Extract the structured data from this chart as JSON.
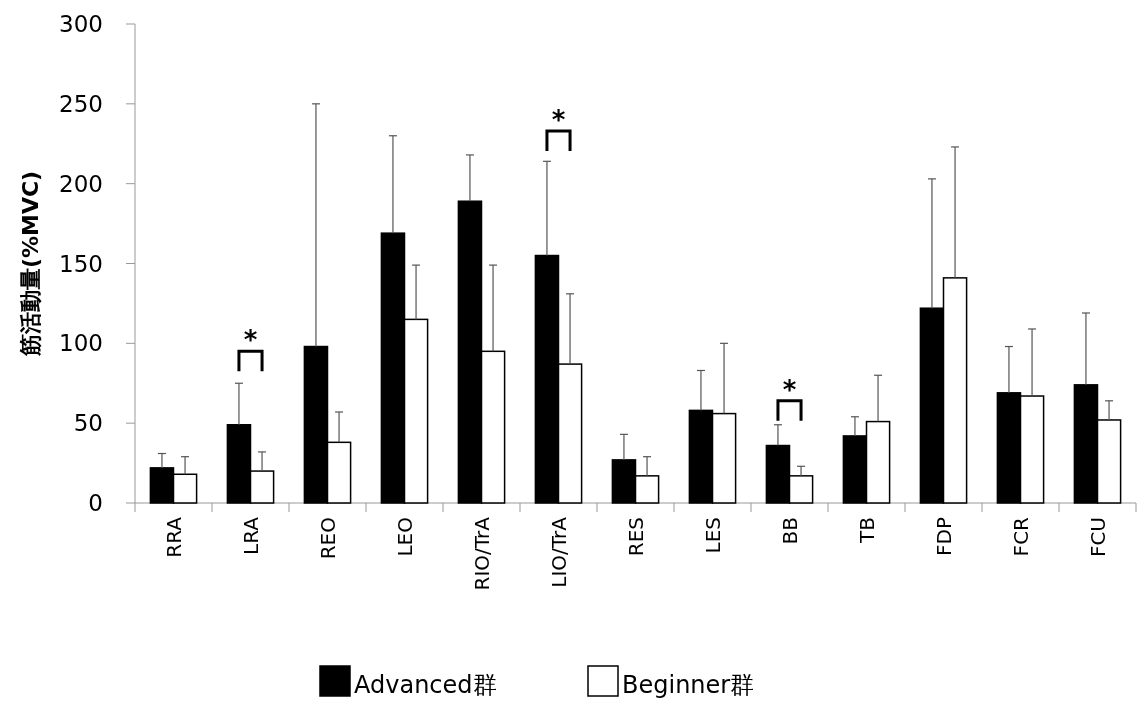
{
  "chart_data": {
    "type": "bar",
    "ylabel": "筋活動量(%MVC)",
    "categories": [
      "RRA",
      "LRA",
      "REO",
      "LEO",
      "RIO/TrA",
      "LIO/TrA",
      "RES",
      "LES",
      "BB",
      "TB",
      "FDP",
      "FCR",
      "FCU"
    ],
    "series": [
      {
        "name": "Advanced群",
        "color": "#000000",
        "values": [
          22,
          49,
          98,
          169,
          189,
          155,
          27,
          58,
          36,
          42,
          122,
          69,
          74
        ],
        "errors": [
          [
            22,
            31
          ],
          [
            49,
            75
          ],
          [
            98,
            250
          ],
          [
            169,
            230
          ],
          [
            189,
            218
          ],
          [
            155,
            214
          ],
          [
            27,
            43
          ],
          [
            58,
            83
          ],
          [
            36,
            49
          ],
          [
            42,
            54
          ],
          [
            122,
            203
          ],
          [
            69,
            98
          ],
          [
            74,
            119
          ]
        ]
      },
      {
        "name": "Beginner群",
        "color": "#ffffff",
        "values": [
          18,
          20,
          38,
          115,
          95,
          87,
          17,
          56,
          17,
          51,
          141,
          67,
          52
        ],
        "errors": [
          [
            18,
            29
          ],
          [
            20,
            32
          ],
          [
            38,
            57
          ],
          [
            115,
            149
          ],
          [
            95,
            149
          ],
          [
            87,
            131
          ],
          [
            17,
            29
          ],
          [
            56,
            100
          ],
          [
            17,
            23
          ],
          [
            51,
            80
          ],
          [
            141,
            223
          ],
          [
            67,
            109
          ],
          [
            52,
            64
          ]
        ]
      }
    ],
    "ylim": [
      0,
      300
    ],
    "yticks": [
      0,
      50,
      100,
      150,
      200,
      250,
      300
    ],
    "grid": false,
    "legend": "bottom",
    "annotations": [
      "*",
      "*",
      "*"
    ]
  }
}
